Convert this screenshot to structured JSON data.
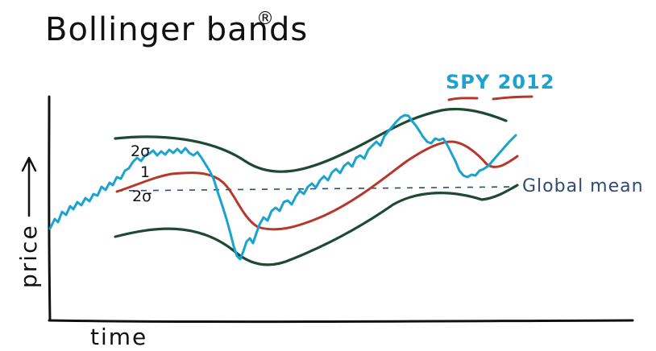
{
  "title": {
    "text": "Bollinger bands",
    "mark": "®"
  },
  "axes": {
    "ylabel": "price",
    "xlabel": "time"
  },
  "labels": {
    "upper_sigma": "2σ",
    "center_mark": "1",
    "lower_sigma": "2σ",
    "series": "SPY 2012",
    "global_mean": "Global mean"
  },
  "colors": {
    "ink": "#111111",
    "price": "#1aa3cf",
    "rolling_mean": "#b7372b",
    "band": "#1d4a33",
    "global_mean": "#2f4b72"
  }
}
